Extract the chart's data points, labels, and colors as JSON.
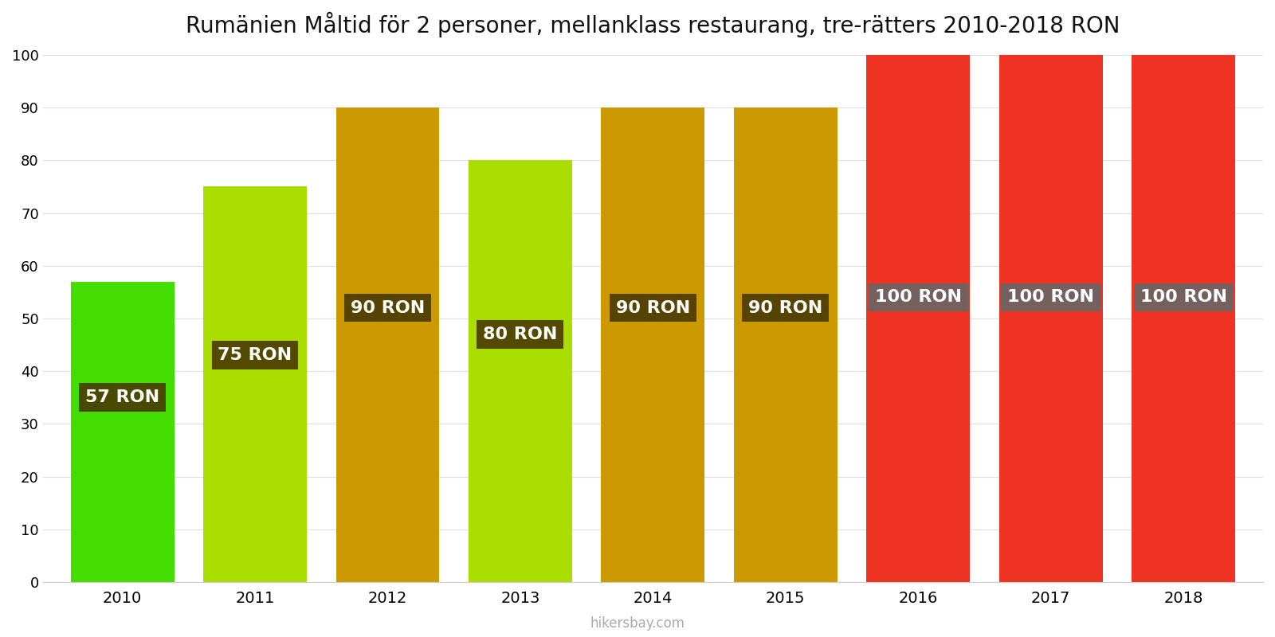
{
  "title": "Rumänien Måltid för 2 personer, mellanklass restaurang, tre-rätters 2010-2018 RON",
  "years": [
    2010,
    2011,
    2012,
    2013,
    2014,
    2015,
    2016,
    2017,
    2018
  ],
  "values": [
    57,
    75,
    90,
    80,
    90,
    90,
    100,
    100,
    100
  ],
  "bar_colors": [
    "#44dd00",
    "#aadd00",
    "#cc9900",
    "#aadd00",
    "#cc9900",
    "#cc9900",
    "#ee3322",
    "#ee3322",
    "#ee3322"
  ],
  "labels": [
    "57 RON",
    "75 RON",
    "90 RON",
    "80 RON",
    "90 RON",
    "90 RON",
    "100 RON",
    "100 RON",
    "100 RON"
  ],
  "label_bg_colors": [
    "#4a3a00",
    "#4a3a00",
    "#4a3a00",
    "#4a3a00",
    "#4a3a00",
    "#4a3a00",
    "#666666",
    "#666666",
    "#666666"
  ],
  "label_y_positions": [
    35,
    43,
    52,
    47,
    52,
    52,
    54,
    54,
    54
  ],
  "label_text_color": "#ffffff",
  "ylabel_max": 100,
  "yticks": [
    0,
    10,
    20,
    30,
    40,
    50,
    60,
    70,
    80,
    90,
    100
  ],
  "footer_text": "hikersbay.com",
  "background_color": "#ffffff",
  "title_fontsize": 20,
  "label_fontsize": 16,
  "grid_color": "#e0e0e0",
  "bar_width": 0.78
}
